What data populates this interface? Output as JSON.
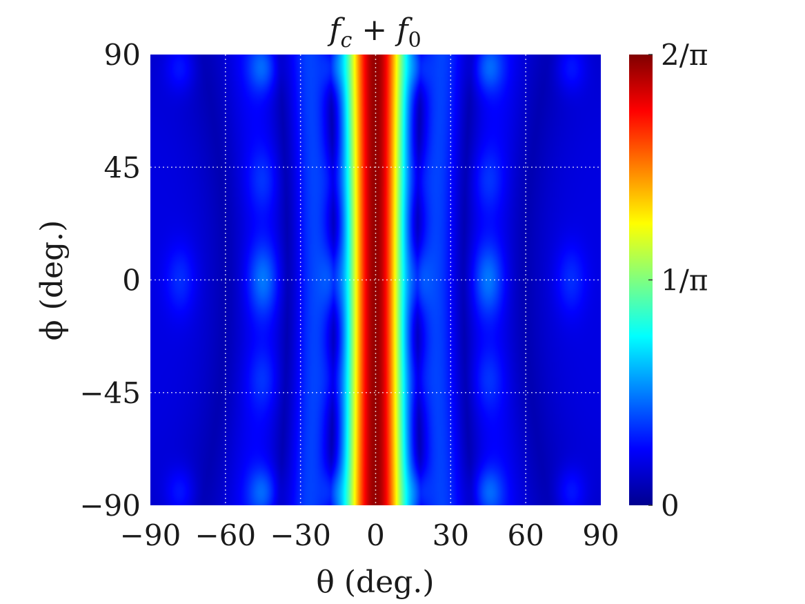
{
  "chart_data": {
    "type": "heatmap",
    "title": "f_c + f_0",
    "xlabel": "θ (deg.)",
    "ylabel": "ϕ (deg.)",
    "x_range": [
      -90,
      90
    ],
    "y_range": [
      -90,
      90
    ],
    "xticks": [
      -90,
      -60,
      -30,
      0,
      30,
      60,
      90
    ],
    "yticks": [
      -90,
      -45,
      0,
      45,
      90
    ],
    "xtick_labels": [
      "−90",
      "−60",
      "−30",
      "0",
      "30",
      "60",
      "90"
    ],
    "ytick_labels": [
      "−90",
      "−45",
      "0",
      "45",
      "90"
    ],
    "grid": true,
    "colorbar": {
      "min": 0,
      "max": 0.6366,
      "colormap": "jet",
      "ticks": [
        0,
        0.3183,
        0.6366
      ],
      "tick_labels": [
        "0",
        "1/π",
        "2/π"
      ]
    },
    "description_values": {
      "main_lobe_theta_deg": 0,
      "main_lobe_peak_value": 0.6366,
      "main_lobe_half_width_deg": 7,
      "sidelobe_theta_deg": [
        -45,
        -17,
        17,
        45
      ],
      "sidelobe_value": 0.1
    }
  }
}
